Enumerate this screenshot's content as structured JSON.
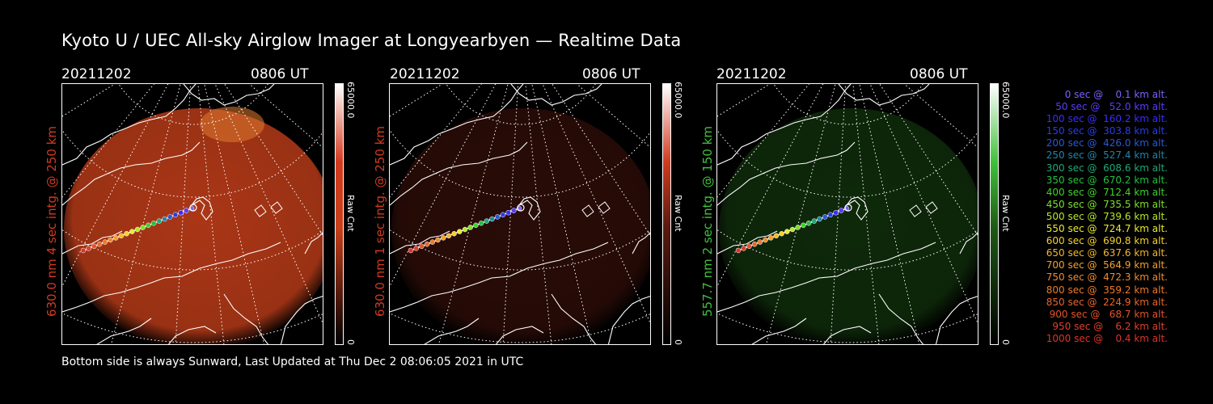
{
  "title": "Kyoto U / UEC All-sky Airglow Imager at Longyearbyen — Realtime Data",
  "footer": "Bottom side is always Sunward, Last Updated at Thu Dec  2 08:06:05 2021 in UTC",
  "panels": [
    {
      "date": "20211202",
      "time": "0806 UT",
      "side_label": "630.0 nm 4 sec intg. @ 250 km",
      "label_color": "#d23a1e",
      "cbar_max": "65000.0",
      "cbar_min": "0",
      "cbar_unit": "Raw Cnt",
      "tint": "#c8401a",
      "intensity": 0.85
    },
    {
      "date": "20211202",
      "time": "0806 UT",
      "side_label": "630.0 nm 1 sec intg. @ 250 km",
      "label_color": "#d23a1e",
      "cbar_max": "65000.0",
      "cbar_min": "0",
      "cbar_unit": "Raw Cnt",
      "tint": "#5a1a10",
      "intensity": 0.45
    },
    {
      "date": "20211202",
      "time": "0806 UT",
      "side_label": "557.7 nm 2 sec intg. @ 150 km",
      "label_color": "#3fc23a",
      "cbar_max": "65000.0",
      "cbar_min": "0",
      "cbar_unit": "Raw Cnt",
      "tint": "#1f5a16",
      "intensity": 0.45
    }
  ],
  "legend": [
    {
      "text": "0 sec @    0.1 km alt.",
      "color": "#7f5fff"
    },
    {
      "text": "50 sec @   52.0 km alt.",
      "color": "#5a3cff"
    },
    {
      "text": "100 sec @  160.2 km alt.",
      "color": "#3a2cff"
    },
    {
      "text": "150 sec @  303.8 km alt.",
      "color": "#2b3ce8"
    },
    {
      "text": "200 sec @  426.0 km alt.",
      "color": "#2a58d8"
    },
    {
      "text": "250 sec @  527.4 km alt.",
      "color": "#1f86a8"
    },
    {
      "text": "300 sec @  608.6 km alt.",
      "color": "#1ea878"
    },
    {
      "text": "350 sec @  670.2 km alt.",
      "color": "#22c040"
    },
    {
      "text": "400 sec @  712.4 km alt.",
      "color": "#3fd22a"
    },
    {
      "text": "450 sec @  735.5 km alt.",
      "color": "#7ee02a"
    },
    {
      "text": "500 sec @  739.6 km alt.",
      "color": "#b6e82a"
    },
    {
      "text": "550 sec @  724.7 km alt.",
      "color": "#e8ec2c"
    },
    {
      "text": "600 sec @  690.8 km alt.",
      "color": "#f6d22a"
    },
    {
      "text": "650 sec @  637.6 km alt.",
      "color": "#f6b82a"
    },
    {
      "text": "700 sec @  564.9 km alt.",
      "color": "#f6a02a"
    },
    {
      "text": "750 sec @  472.3 km alt.",
      "color": "#f28a2a"
    },
    {
      "text": "800 sec @  359.2 km alt.",
      "color": "#ee7a2a"
    },
    {
      "text": "850 sec @  224.9 km alt.",
      "color": "#e8662a"
    },
    {
      "text": "900 sec @   68.7 km alt.",
      "color": "#e4522a"
    },
    {
      "text": "950 sec @    6.2 km alt.",
      "color": "#e0402a"
    },
    {
      "text": "1000 sec @    0.4 km alt.",
      "color": "#dc342a"
    }
  ]
}
